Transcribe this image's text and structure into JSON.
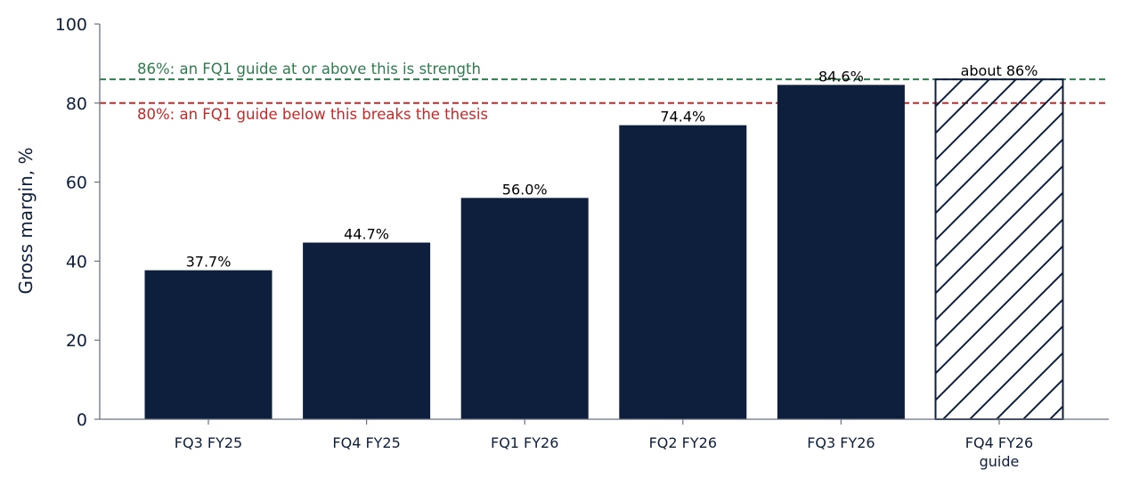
{
  "chart_data": {
    "type": "bar",
    "categories": [
      "FQ3 FY25",
      "FQ4 FY25",
      "FQ1 FY26",
      "FQ2 FY26",
      "FQ3 FY26",
      "FQ4 FY26\nguide"
    ],
    "values": [
      37.7,
      44.7,
      56.0,
      74.4,
      84.6,
      86
    ],
    "data_labels": [
      "37.7%",
      "44.7%",
      "56.0%",
      "74.4%",
      "84.6%",
      "about 86%"
    ],
    "hatched": [
      false,
      false,
      false,
      false,
      false,
      true
    ],
    "title": "",
    "xlabel": "",
    "ylabel": "Gross margin, %",
    "ylim": [
      0,
      100
    ],
    "yticks": [
      0,
      20,
      40,
      60,
      80,
      100
    ],
    "grid": false,
    "bar_color": "#0d1f3c",
    "reference_lines": [
      {
        "value": 86,
        "label": "86%: an FQ1 guide at or above this is strength",
        "color": "#2e7d4f",
        "style": "dashed"
      },
      {
        "value": 80,
        "label": "80%: an FQ1 guide below this breaks the thesis",
        "color": "#c62828",
        "style": "dashed"
      }
    ]
  }
}
